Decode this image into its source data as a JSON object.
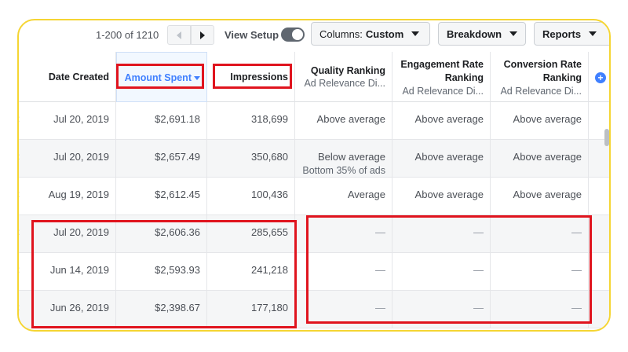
{
  "toolbar": {
    "range_text": "1-200 of 1210",
    "view_setup_label": "View Setup",
    "columns_prefix": "Columns:",
    "columns_value": "Custom",
    "breakdown_label": "Breakdown",
    "reports_label": "Reports"
  },
  "headers": {
    "date_created": "Date Created",
    "amount_spent": "Amount Spent",
    "impressions": "Impressions",
    "quality_title": "Quality Ranking",
    "quality_sub": "Ad Relevance Di...",
    "engagement_title_1": "Engagement Rate",
    "engagement_title_2": "Ranking",
    "engagement_sub": "Ad Relevance Di...",
    "conversion_title_1": "Conversion Rate",
    "conversion_title_2": "Ranking",
    "conversion_sub": "Ad Relevance Di...",
    "add_column_symbol": "+"
  },
  "rows": [
    {
      "date": "Jul 20, 2019",
      "amount": "$2,691.18",
      "impressions": "318,699",
      "quality": "Above average",
      "quality_note": "",
      "engagement": "Above average",
      "conversion": "Above average"
    },
    {
      "date": "Jul 20, 2019",
      "amount": "$2,657.49",
      "impressions": "350,680",
      "quality": "Below average",
      "quality_note": "Bottom 35% of ads",
      "engagement": "Above average",
      "conversion": "Above average"
    },
    {
      "date": "Aug 19, 2019",
      "amount": "$2,612.45",
      "impressions": "100,436",
      "quality": "Average",
      "quality_note": "",
      "engagement": "Above average",
      "conversion": "Above average"
    },
    {
      "date": "Jul 20, 2019",
      "amount": "$2,606.36",
      "impressions": "285,655",
      "quality": "—",
      "quality_note": "",
      "engagement": "—",
      "conversion": "—"
    },
    {
      "date": "Jun 14, 2019",
      "amount": "$2,593.93",
      "impressions": "241,218",
      "quality": "—",
      "quality_note": "",
      "engagement": "—",
      "conversion": "—"
    },
    {
      "date": "Jun 26, 2019",
      "amount": "$2,398.67",
      "impressions": "177,180",
      "quality": "—",
      "quality_note": "",
      "engagement": "—",
      "conversion": "—"
    }
  ],
  "row_marker": ":",
  "colors": {
    "frame_border": "#f5d533",
    "highlight_red": "#e0141e",
    "sort_blue": "#4080ff"
  }
}
